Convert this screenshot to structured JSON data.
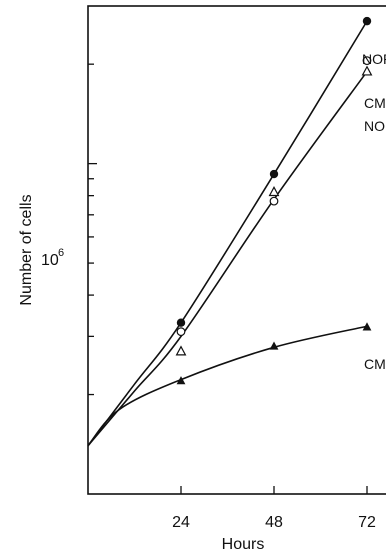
{
  "chart_data": {
    "type": "line",
    "xlabel": "Hours",
    "ylabel": "Number of cells",
    "x_ticks": [
      24,
      48,
      72
    ],
    "y_tick_labels": [
      {
        "value": 1000000,
        "base": "10",
        "exponent": "6"
      }
    ],
    "yscale": "log",
    "xlim": [
      0,
      80
    ],
    "ylim": [
      100000,
      3000000
    ],
    "grid": false,
    "series": [
      {
        "name": "NOR",
        "marker": "filled-circle",
        "x": [
          24,
          48,
          72
        ],
        "y": [
          330000,
          930000,
          2700000
        ],
        "curve": [
          [
            0,
            140000
          ],
          [
            12,
            215000
          ],
          [
            24,
            330000
          ],
          [
            48,
            930000
          ],
          [
            72,
            2700000
          ]
        ]
      },
      {
        "name": "NOR",
        "marker": "open-circle",
        "x": [
          24,
          48,
          72
        ],
        "y": [
          310000,
          770000,
          2050000
        ],
        "curve": null
      },
      {
        "name": "CMX+ NOR",
        "marker": "open-triangle",
        "x": [
          24,
          48,
          72
        ],
        "y": [
          270000,
          820000,
          1900000
        ],
        "curve": [
          [
            0,
            140000
          ],
          [
            12,
            205000
          ],
          [
            24,
            300000
          ],
          [
            48,
            780000
          ],
          [
            72,
            1900000
          ]
        ]
      },
      {
        "name": "CMX",
        "marker": "filled-triangle",
        "x": [
          24,
          48,
          72
        ],
        "y": [
          220000,
          280000,
          320000
        ],
        "curve": [
          [
            0,
            140000
          ],
          [
            8,
            180000
          ],
          [
            24,
            222000
          ],
          [
            48,
            278000
          ],
          [
            72,
            322000
          ]
        ]
      }
    ],
    "annotations": [
      {
        "text": "NOR",
        "series": 0
      },
      {
        "text": "CMX+",
        "series": 2
      },
      {
        "text": "NOR",
        "series": 2
      },
      {
        "text": "CMX",
        "series": 3
      }
    ]
  }
}
